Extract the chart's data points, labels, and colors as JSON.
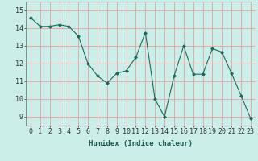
{
  "x": [
    0,
    1,
    2,
    3,
    4,
    5,
    6,
    7,
    8,
    9,
    10,
    11,
    12,
    13,
    14,
    15,
    16,
    17,
    18,
    19,
    20,
    21,
    22,
    23
  ],
  "y": [
    14.6,
    14.1,
    14.1,
    14.2,
    14.1,
    13.55,
    12.0,
    11.3,
    10.9,
    11.45,
    11.6,
    12.35,
    13.75,
    10.0,
    9.0,
    11.3,
    13.0,
    11.4,
    11.4,
    12.85,
    12.65,
    11.45,
    10.2,
    8.9
  ],
  "line_color": "#1a6b5a",
  "marker": "D",
  "marker_size": 2.0,
  "bg_color": "#cceee8",
  "grid_color": "#e8a0a0",
  "xlabel": "Humidex (Indice chaleur)",
  "ylim": [
    8.5,
    15.5
  ],
  "xlim": [
    -0.5,
    23.5
  ],
  "yticks": [
    9,
    10,
    11,
    12,
    13,
    14,
    15
  ],
  "xticks": [
    0,
    1,
    2,
    3,
    4,
    5,
    6,
    7,
    8,
    9,
    10,
    11,
    12,
    13,
    14,
    15,
    16,
    17,
    18,
    19,
    20,
    21,
    22,
    23
  ],
  "xlabel_fontsize": 6.5,
  "tick_fontsize": 6.0
}
